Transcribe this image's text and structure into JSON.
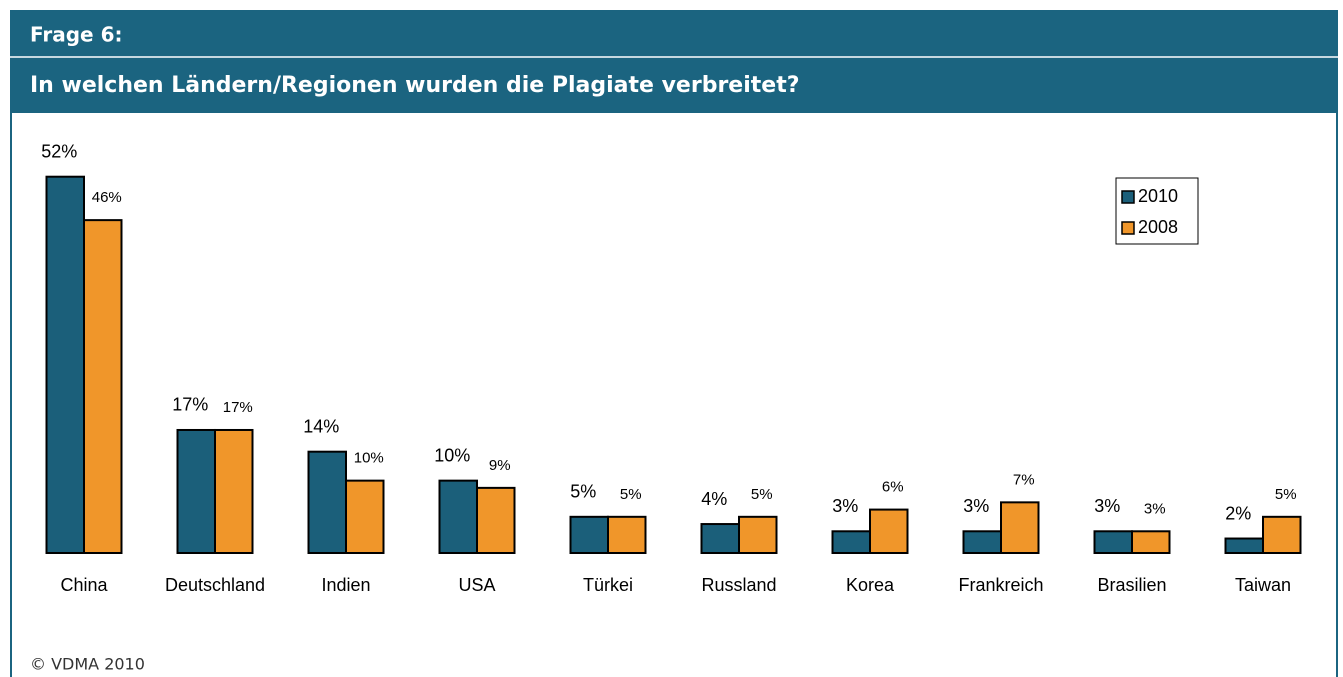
{
  "header": {
    "question": "Frage 6:",
    "title": "In welchen Ländern/Regionen wurden die Plagiate verbreitet?"
  },
  "chart_data": {
    "type": "bar",
    "categories": [
      "China",
      "Deutschland",
      "Indien",
      "USA",
      "Türkei",
      "Russland",
      "Korea",
      "Frankreich",
      "Brasilien",
      "Taiwan"
    ],
    "series": [
      {
        "name": "2010",
        "color": "#1b5f7a",
        "values": [
          52,
          17,
          14,
          10,
          5,
          4,
          3,
          3,
          3,
          2
        ],
        "value_labels": [
          "52%",
          "17%",
          "14%",
          "10%",
          "5%",
          "4%",
          "3%",
          "3%",
          "3%",
          "2%"
        ]
      },
      {
        "name": "2008",
        "color": "#f0962a",
        "values": [
          46,
          17,
          10,
          9,
          5,
          5,
          6,
          7,
          3,
          5
        ],
        "value_labels": [
          "46%",
          "17%",
          "10%",
          "9%",
          "5%",
          "5%",
          "6%",
          "7%",
          "3%",
          "5%"
        ]
      }
    ],
    "ylim": [
      0,
      55
    ],
    "legend": "top-right"
  },
  "footer": "© VDMA 2010"
}
